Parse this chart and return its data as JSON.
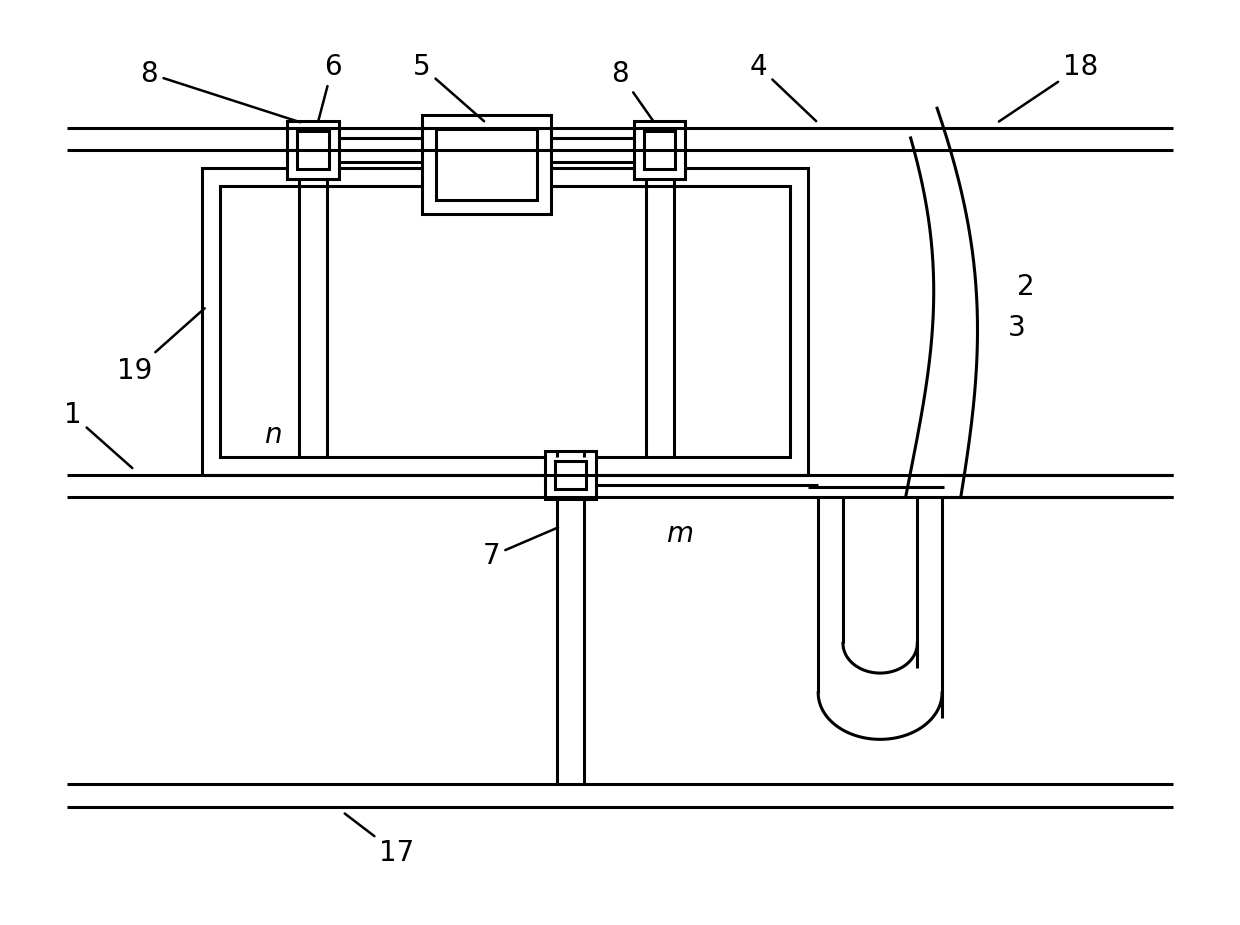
{
  "bg_color": "#ffffff",
  "line_color": "#000000",
  "lw_thick": 2.2,
  "lw_thin": 1.8,
  "fig_width": 12.4,
  "fig_height": 9.25,
  "dpi": 100
}
